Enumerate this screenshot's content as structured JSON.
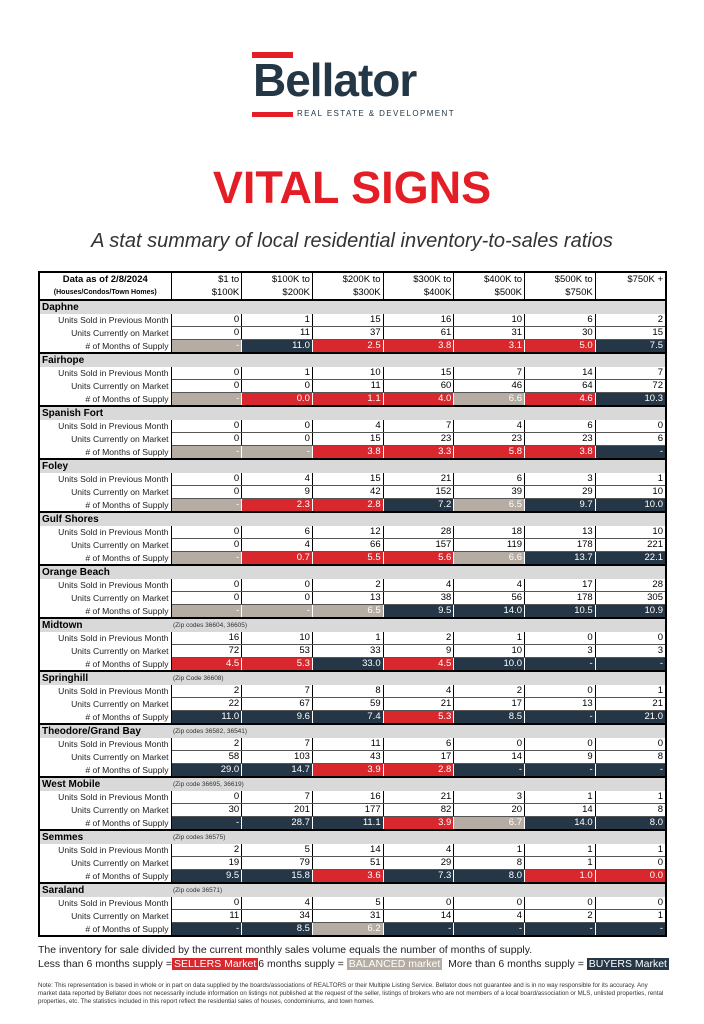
{
  "logo": {
    "name": "Bellator",
    "tagline": "REAL ESTATE & DEVELOPMENT"
  },
  "title": "VITAL SIGNS",
  "subtitle": "A stat summary of local residential inventory-to-sales ratios",
  "table": {
    "as_of": "Data as of 2/8/2024",
    "scope": "(Houses/Condos/Town Homes)",
    "columns": [
      {
        "line1": "$1 to",
        "line2": "$100K"
      },
      {
        "line1": "$100K to",
        "line2": "$200K"
      },
      {
        "line1": "$200K to",
        "line2": "$300K"
      },
      {
        "line1": "$300K to",
        "line2": "$400K"
      },
      {
        "line1": "$400K to",
        "line2": "$500K"
      },
      {
        "line1": "$500K to",
        "line2": "$750K"
      },
      {
        "line1": "$750K +",
        "line2": ""
      }
    ],
    "row_labels": {
      "sold": "Units Sold in Previous Month",
      "market": "Units Currently on Market",
      "supply": "# of Months of Supply"
    },
    "regions": [
      {
        "name": "Daphne",
        "zip": "",
        "sold": [
          "0",
          "1",
          "15",
          "16",
          "10",
          "6",
          "2"
        ],
        "market": [
          "0",
          "11",
          "37",
          "61",
          "31",
          "30",
          "15"
        ],
        "supply": [
          {
            "v": "-",
            "m": "balanced"
          },
          {
            "v": "11.0",
            "m": "buyers"
          },
          {
            "v": "2.5",
            "m": "sellers"
          },
          {
            "v": "3.8",
            "m": "sellers"
          },
          {
            "v": "3.1",
            "m": "sellers"
          },
          {
            "v": "5.0",
            "m": "sellers"
          },
          {
            "v": "7.5",
            "m": "buyers"
          }
        ]
      },
      {
        "name": "Fairhope",
        "zip": "",
        "sold": [
          "0",
          "1",
          "10",
          "15",
          "7",
          "14",
          "7"
        ],
        "market": [
          "0",
          "0",
          "11",
          "60",
          "46",
          "64",
          "72"
        ],
        "supply": [
          {
            "v": "-",
            "m": "balanced"
          },
          {
            "v": "0.0",
            "m": "sellers"
          },
          {
            "v": "1.1",
            "m": "sellers"
          },
          {
            "v": "4.0",
            "m": "sellers"
          },
          {
            "v": "6.6",
            "m": "balanced"
          },
          {
            "v": "4.6",
            "m": "sellers"
          },
          {
            "v": "10.3",
            "m": "buyers"
          }
        ]
      },
      {
        "name": "Spanish Fort",
        "zip": "",
        "sold": [
          "0",
          "0",
          "4",
          "7",
          "4",
          "6",
          "0"
        ],
        "market": [
          "0",
          "0",
          "15",
          "23",
          "23",
          "23",
          "6"
        ],
        "supply": [
          {
            "v": "-",
            "m": "balanced"
          },
          {
            "v": "-",
            "m": "balanced"
          },
          {
            "v": "3.8",
            "m": "sellers"
          },
          {
            "v": "3.3",
            "m": "sellers"
          },
          {
            "v": "5.8",
            "m": "sellers"
          },
          {
            "v": "3.8",
            "m": "sellers"
          },
          {
            "v": "-",
            "m": "buyers"
          }
        ]
      },
      {
        "name": "Foley",
        "zip": "",
        "sold": [
          "0",
          "4",
          "15",
          "21",
          "6",
          "3",
          "1"
        ],
        "market": [
          "0",
          "9",
          "42",
          "152",
          "39",
          "29",
          "10"
        ],
        "supply": [
          {
            "v": "-",
            "m": "balanced"
          },
          {
            "v": "2.3",
            "m": "sellers"
          },
          {
            "v": "2.8",
            "m": "sellers"
          },
          {
            "v": "7.2",
            "m": "buyers"
          },
          {
            "v": "6.5",
            "m": "balanced"
          },
          {
            "v": "9.7",
            "m": "buyers"
          },
          {
            "v": "10.0",
            "m": "buyers"
          }
        ]
      },
      {
        "name": "Gulf Shores",
        "zip": "",
        "sold": [
          "0",
          "6",
          "12",
          "28",
          "18",
          "13",
          "10"
        ],
        "market": [
          "0",
          "4",
          "66",
          "157",
          "119",
          "178",
          "221"
        ],
        "supply": [
          {
            "v": "-",
            "m": "balanced"
          },
          {
            "v": "0.7",
            "m": "sellers"
          },
          {
            "v": "5.5",
            "m": "sellers"
          },
          {
            "v": "5.6",
            "m": "sellers"
          },
          {
            "v": "6.6",
            "m": "balanced"
          },
          {
            "v": "13.7",
            "m": "buyers"
          },
          {
            "v": "22.1",
            "m": "buyers"
          }
        ]
      },
      {
        "name": "Orange Beach",
        "zip": "",
        "sold": [
          "0",
          "0",
          "2",
          "4",
          "4",
          "17",
          "28"
        ],
        "market": [
          "0",
          "0",
          "13",
          "38",
          "56",
          "178",
          "305"
        ],
        "supply": [
          {
            "v": "-",
            "m": "balanced"
          },
          {
            "v": "-",
            "m": "balanced"
          },
          {
            "v": "6.5",
            "m": "balanced"
          },
          {
            "v": "9.5",
            "m": "buyers"
          },
          {
            "v": "14.0",
            "m": "buyers"
          },
          {
            "v": "10.5",
            "m": "buyers"
          },
          {
            "v": "10.9",
            "m": "buyers"
          }
        ]
      },
      {
        "name": "Midtown",
        "zip": "(Zip codes 36604, 36605)",
        "sold": [
          "16",
          "10",
          "1",
          "2",
          "1",
          "0",
          "0"
        ],
        "market": [
          "72",
          "53",
          "33",
          "9",
          "10",
          "3",
          "3"
        ],
        "supply": [
          {
            "v": "4.5",
            "m": "sellers"
          },
          {
            "v": "5.3",
            "m": "sellers"
          },
          {
            "v": "33.0",
            "m": "buyers"
          },
          {
            "v": "4.5",
            "m": "sellers"
          },
          {
            "v": "10.0",
            "m": "buyers"
          },
          {
            "v": "-",
            "m": "buyers"
          },
          {
            "v": "-",
            "m": "buyers"
          }
        ]
      },
      {
        "name": "Springhill",
        "zip": "(Zip Code 36608)",
        "sold": [
          "2",
          "7",
          "8",
          "4",
          "2",
          "0",
          "1"
        ],
        "market": [
          "22",
          "67",
          "59",
          "21",
          "17",
          "13",
          "21"
        ],
        "supply": [
          {
            "v": "11.0",
            "m": "buyers"
          },
          {
            "v": "9.6",
            "m": "buyers"
          },
          {
            "v": "7.4",
            "m": "buyers"
          },
          {
            "v": "5.3",
            "m": "sellers"
          },
          {
            "v": "8.5",
            "m": "buyers"
          },
          {
            "v": "-",
            "m": "buyers"
          },
          {
            "v": "21.0",
            "m": "buyers"
          }
        ]
      },
      {
        "name": "Theodore/Grand Bay",
        "zip": "(Zip codes 36582, 36541)",
        "sold": [
          "2",
          "7",
          "11",
          "6",
          "0",
          "0",
          "0"
        ],
        "market": [
          "58",
          "103",
          "43",
          "17",
          "14",
          "9",
          "8"
        ],
        "supply": [
          {
            "v": "29.0",
            "m": "buyers"
          },
          {
            "v": "14.7",
            "m": "buyers"
          },
          {
            "v": "3.9",
            "m": "sellers"
          },
          {
            "v": "2.8",
            "m": "sellers"
          },
          {
            "v": "-",
            "m": "buyers"
          },
          {
            "v": "-",
            "m": "buyers"
          },
          {
            "v": "-",
            "m": "buyers"
          }
        ]
      },
      {
        "name": "West Mobile",
        "zip": "(Zip code 36695, 36619)",
        "sold": [
          "0",
          "7",
          "16",
          "21",
          "3",
          "1",
          "1"
        ],
        "market": [
          "30",
          "201",
          "177",
          "82",
          "20",
          "14",
          "8"
        ],
        "supply": [
          {
            "v": "-",
            "m": "buyers"
          },
          {
            "v": "28.7",
            "m": "buyers"
          },
          {
            "v": "11.1",
            "m": "buyers"
          },
          {
            "v": "3.9",
            "m": "sellers"
          },
          {
            "v": "6.7",
            "m": "balanced"
          },
          {
            "v": "14.0",
            "m": "buyers"
          },
          {
            "v": "8.0",
            "m": "buyers"
          }
        ]
      },
      {
        "name": "Semmes",
        "zip": "(Zip codes 36575)",
        "sold": [
          "2",
          "5",
          "14",
          "4",
          "1",
          "1",
          "1"
        ],
        "market": [
          "19",
          "79",
          "51",
          "29",
          "8",
          "1",
          "0"
        ],
        "supply": [
          {
            "v": "9.5",
            "m": "buyers"
          },
          {
            "v": "15.8",
            "m": "buyers"
          },
          {
            "v": "3.6",
            "m": "sellers"
          },
          {
            "v": "7.3",
            "m": "buyers"
          },
          {
            "v": "8.0",
            "m": "buyers"
          },
          {
            "v": "1.0",
            "m": "sellers"
          },
          {
            "v": "0.0",
            "m": "sellers"
          }
        ]
      },
      {
        "name": "Saraland",
        "zip": "(Zip code 36571)",
        "sold": [
          "0",
          "4",
          "5",
          "0",
          "0",
          "0",
          "0"
        ],
        "market": [
          "11",
          "34",
          "31",
          "14",
          "4",
          "2",
          "1"
        ],
        "supply": [
          {
            "v": "-",
            "m": "buyers"
          },
          {
            "v": "8.5",
            "m": "buyers"
          },
          {
            "v": "6.2",
            "m": "balanced"
          },
          {
            "v": "-",
            "m": "buyers"
          },
          {
            "v": "-",
            "m": "buyers"
          },
          {
            "v": "-",
            "m": "buyers"
          },
          {
            "v": "-",
            "m": "buyers"
          }
        ]
      }
    ]
  },
  "legend": {
    "explanation": "The inventory for sale divided by the current monthly sales volume equals the number of months of supply.",
    "less_text": "Less than 6 months supply =",
    "sellers_label": "SELLERS Market",
    "six_text": "6 months supply =",
    "balanced_label": "BALANCED market",
    "more_text": "More than 6 months supply =",
    "buyers_label": "BUYERS Market",
    "colors": {
      "sellers": "#d9272e",
      "balanced": "#b5aca3",
      "buyers": "#253746"
    }
  },
  "note": "Note: This representation is based in whole or in part on data supplied by the boards/associations of REALTORS or their Multiple Listing Service. Bellator does not guarantee and is in no way responsible for its accuracy. Any market data reported by Bellator does not necessarily include information on listings not published at the request of the seller, listings of brokers who are not members of a local board/association or MLS, unlisted properties, rental properties, etc. The statistics included in this report reflect the residential sales of houses, condominiums, and town homes."
}
